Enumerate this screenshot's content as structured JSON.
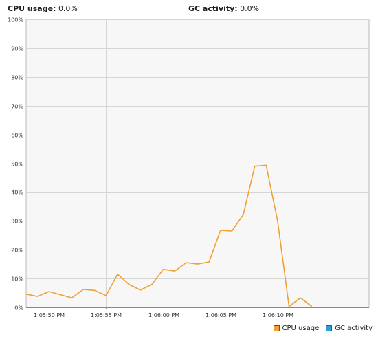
{
  "header": {
    "cpu_label": "CPU usage:",
    "cpu_value": "0.0%",
    "gc_label": "GC activity:",
    "gc_value": "0.0%"
  },
  "colors": {
    "cpu": "#f0a030",
    "gc": "#2a9fd0",
    "grid": "#d6d6d6",
    "plot_bg": "#f7f7f7"
  },
  "chart_data": {
    "type": "line",
    "ylim": [
      0,
      100
    ],
    "xlim": [
      "1:05:48",
      "1:06:18"
    ],
    "grid": true,
    "legend_placement": "bottom-right",
    "y_ticks": [
      {
        "value": 0,
        "label": "0%"
      },
      {
        "value": 10,
        "label": "10%"
      },
      {
        "value": 20,
        "label": "20%"
      },
      {
        "value": 30,
        "label": "30%"
      },
      {
        "value": 40,
        "label": "40%"
      },
      {
        "value": 50,
        "label": "50%"
      },
      {
        "value": 60,
        "label": "60%"
      },
      {
        "value": 70,
        "label": "70%"
      },
      {
        "value": 80,
        "label": "80%"
      },
      {
        "value": 90,
        "label": "90%"
      },
      {
        "value": 100,
        "label": "100%"
      }
    ],
    "x_ticks": [
      {
        "value": "1:05:50",
        "label": "1:05:50 PM"
      },
      {
        "value": "1:05:55",
        "label": "1:05:55 PM"
      },
      {
        "value": "1:06:00",
        "label": "1:06:00 PM"
      },
      {
        "value": "1:06:05",
        "label": "1:06:05 PM"
      },
      {
        "value": "1:06:10",
        "label": "1:06:10 PM"
      }
    ],
    "series": [
      {
        "name": "CPU usage",
        "color": "#f0a030",
        "x": [
          "1:05:48",
          "1:05:49",
          "1:05:50",
          "1:05:51",
          "1:05:52",
          "1:05:53",
          "1:05:54",
          "1:05:55",
          "1:05:56",
          "1:05:57",
          "1:05:58",
          "1:05:59",
          "1:06:00",
          "1:06:01",
          "1:06:02",
          "1:06:03",
          "1:06:04",
          "1:06:05",
          "1:06:06",
          "1:06:07",
          "1:06:08",
          "1:06:09",
          "1:06:10",
          "1:06:11",
          "1:06:12",
          "1:06:13",
          "1:06:14",
          "1:06:15",
          "1:06:16",
          "1:06:17",
          "1:06:18"
        ],
        "y": [
          4.6,
          3.8,
          5.5,
          4.4,
          3.3,
          6.2,
          5.9,
          4.1,
          11.5,
          8.0,
          6.0,
          8.0,
          13.2,
          12.6,
          15.5,
          15.0,
          15.7,
          26.7,
          26.5,
          32.2,
          49.0,
          49.3,
          30.0,
          0.3,
          3.3,
          0.3,
          null,
          null,
          null,
          null,
          null
        ]
      },
      {
        "name": "GC activity",
        "color": "#2a9fd0",
        "x": [
          "1:05:48",
          "1:06:18"
        ],
        "y": [
          0,
          0
        ]
      }
    ]
  }
}
